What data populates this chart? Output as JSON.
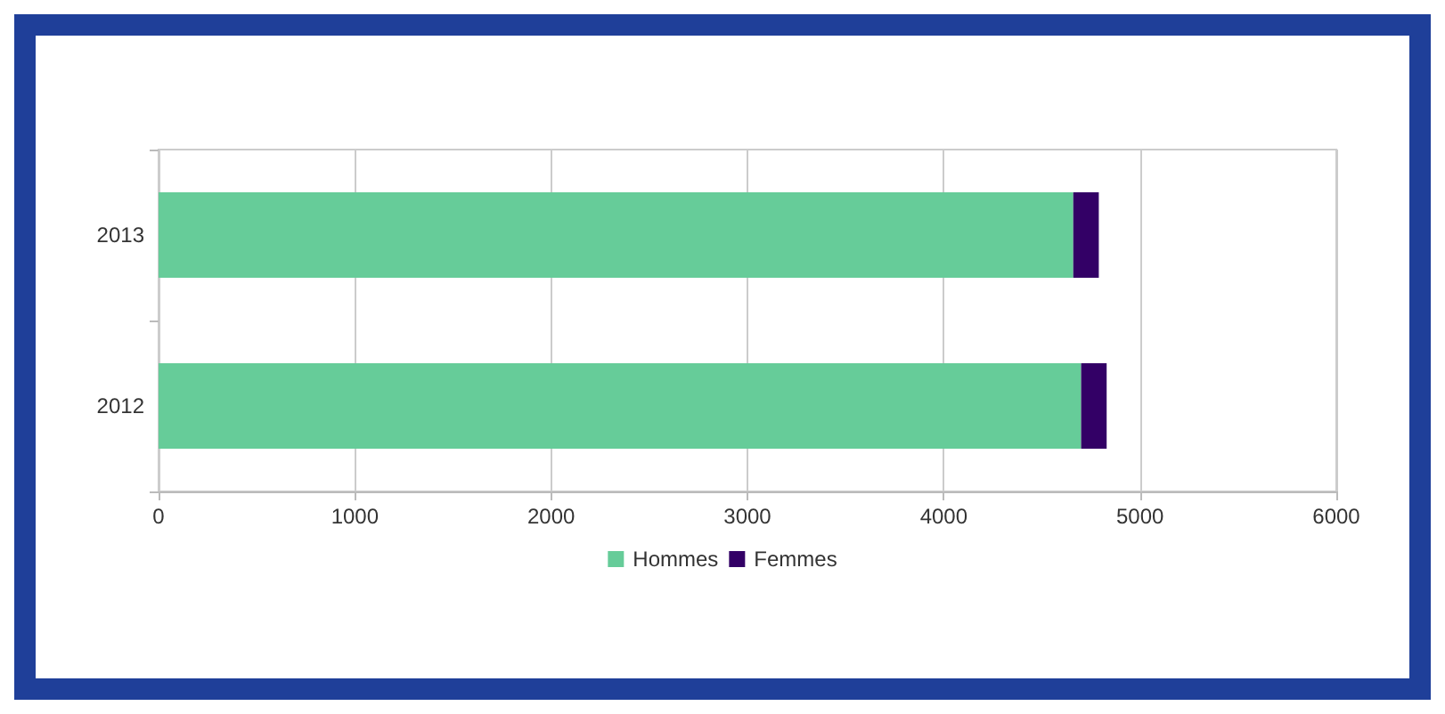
{
  "chart_data": {
    "type": "bar",
    "orientation": "horizontal",
    "stacked": true,
    "categories": [
      "2013",
      "2012"
    ],
    "series": [
      {
        "name": "Hommes",
        "color": "#66cc99",
        "values": [
          4660,
          4700
        ]
      },
      {
        "name": "Femmes",
        "color": "#330066",
        "values": [
          130,
          130
        ]
      }
    ],
    "xlim": [
      0,
      6000
    ],
    "xticks": [
      0,
      1000,
      2000,
      3000,
      4000,
      5000,
      6000
    ],
    "grid": "x",
    "legend": "bottom"
  }
}
